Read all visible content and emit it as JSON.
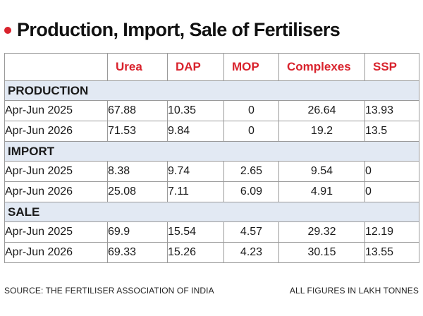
{
  "title": "Production, Import, Sale of Fertilisers",
  "columns": [
    "Urea",
    "DAP",
    "MOP",
    "Complexes",
    "SSP"
  ],
  "sections": [
    {
      "name": "PRODUCTION",
      "rows": [
        {
          "label": "Apr-Jun 2025",
          "values": [
            "67.88",
            "10.35",
            "0",
            "26.64",
            "13.93"
          ]
        },
        {
          "label": "Apr-Jun 2026",
          "values": [
            "71.53",
            "9.84",
            "0",
            "19.2",
            "13.5"
          ]
        }
      ]
    },
    {
      "name": "IMPORT",
      "rows": [
        {
          "label": "Apr-Jun 2025",
          "values": [
            "8.38",
            "9.74",
            "2.65",
            "9.54",
            "0"
          ]
        },
        {
          "label": "Apr-Jun 2026",
          "values": [
            "25.08",
            "7.11",
            "6.09",
            "4.91",
            "0"
          ]
        }
      ]
    },
    {
      "name": "SALE",
      "rows": [
        {
          "label": "Apr-Jun 2025",
          "values": [
            "69.9",
            "15.54",
            "4.57",
            "29.32",
            "12.19"
          ]
        },
        {
          "label": "Apr-Jun 2026",
          "values": [
            "69.33",
            "15.26",
            "4.23",
            "30.15",
            "13.55"
          ]
        }
      ]
    }
  ],
  "footer": {
    "source": "SOURCE: THE FERTILISER ASSOCIATION OF INDIA",
    "units": "ALL FIGURES IN LAKH TONNES"
  },
  "colors": {
    "accent": "#d9232d",
    "section_bg": "#e2e9f3",
    "border": "#9a9a9a"
  }
}
